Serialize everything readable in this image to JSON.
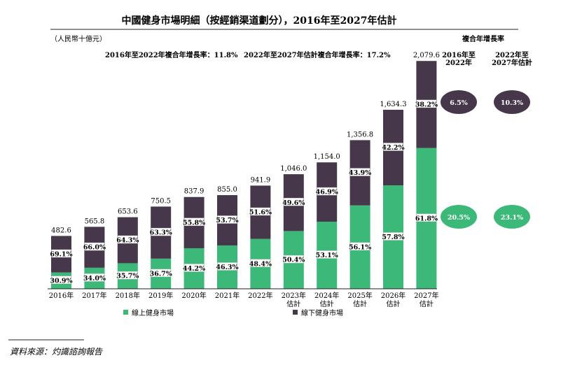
{
  "chart_data": {
    "type": "bar",
    "stacked": true,
    "title": "中國健身市場明細（按經銷渠道劃分），2016年至2027年估計",
    "unit_label": "（人民幣十億元）",
    "categories": [
      [
        "2016年"
      ],
      [
        "2017年"
      ],
      [
        "2018年"
      ],
      [
        "2019年"
      ],
      [
        "2020年"
      ],
      [
        "2021年"
      ],
      [
        "2022年"
      ],
      [
        "2023年",
        "估計"
      ],
      [
        "2024年",
        "估計"
      ],
      [
        "2025年",
        "估計"
      ],
      [
        "2026年",
        "估計"
      ],
      [
        "2027年",
        "估計"
      ]
    ],
    "totals": [
      482.6,
      565.8,
      653.6,
      750.5,
      837.9,
      855.0,
      941.9,
      1046.0,
      1154.0,
      1356.8,
      1634.3,
      2079.6
    ],
    "total_labels": [
      "482.6",
      "565.8",
      "653.6",
      "750.5",
      "837.9",
      "855.0",
      "941.9",
      "1,046.0",
      "1,154.0",
      "1,356.8",
      "1,634.3",
      "2,079.6"
    ],
    "series": [
      {
        "name": "線上健身市場",
        "color": "#3cb878",
        "share_pct": [
          30.9,
          34.0,
          35.7,
          36.7,
          44.2,
          46.3,
          48.4,
          50.4,
          53.1,
          56.1,
          57.8,
          61.8
        ],
        "share_labels": [
          "30.9%",
          "34.0%",
          "35.7%",
          "36.7%",
          "44.2%",
          "46.3%",
          "48.4%",
          "50.4%",
          "53.1%",
          "56.1%",
          "57.8%",
          "61.8%"
        ]
      },
      {
        "name": "線下健身市場",
        "color": "#46374a",
        "share_pct": [
          69.1,
          66.0,
          64.3,
          63.3,
          55.8,
          53.7,
          51.6,
          49.6,
          46.9,
          43.9,
          42.2,
          38.2
        ],
        "share_labels": [
          "69.1%",
          "66.0%",
          "64.3%",
          "63.3%",
          "55.8%",
          "53.7%",
          "51.6%",
          "49.6%",
          "46.9%",
          "43.9%",
          "42.2%",
          "38.2%"
        ]
      }
    ],
    "ylim": [
      0,
      2100
    ],
    "cagr_notes": [
      "2016年至2022年複合年增長率：11.8%",
      "2022年至2027年估計複合年增長率：17.2%"
    ],
    "cagr_table": {
      "title": "複合年增長率",
      "columns": [
        [
          "2016年至",
          "2022年"
        ],
        [
          "2022年至",
          "2027年估計"
        ]
      ],
      "offline": [
        "6.5%",
        "10.3%"
      ],
      "online": [
        "20.5%",
        "23.1%"
      ]
    },
    "source": "資料來源：灼識諮詢報告"
  }
}
